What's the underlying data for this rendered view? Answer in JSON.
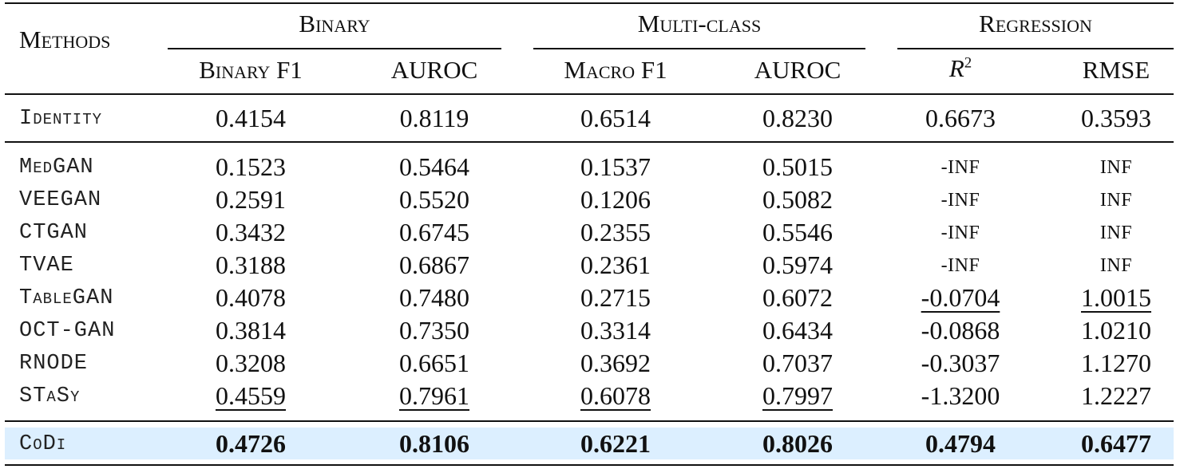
{
  "table": {
    "methods_header": "Methods",
    "groups": [
      {
        "label": "Binary"
      },
      {
        "label": "Multi-class"
      },
      {
        "label": "Regression"
      }
    ],
    "columns": [
      "Binary F1",
      "AUROC",
      "Macro F1",
      "AUROC",
      "R2",
      "RMSE"
    ],
    "rows": [
      {
        "method": "Identity",
        "section": "baseline",
        "values": [
          "0.4154",
          "0.8119",
          "0.6514",
          "0.8230",
          "0.6673",
          "0.3593"
        ],
        "underline": [
          false,
          false,
          false,
          false,
          false,
          false
        ],
        "bold": false
      },
      {
        "method": "MedGAN",
        "section": "baselines",
        "values": [
          "0.1523",
          "0.5464",
          "0.1537",
          "0.5015",
          "-INF",
          "INF"
        ],
        "underline": [
          false,
          false,
          false,
          false,
          false,
          false
        ],
        "bold": false
      },
      {
        "method": "VEEGAN",
        "section": "baselines",
        "values": [
          "0.2591",
          "0.5520",
          "0.1206",
          "0.5082",
          "-INF",
          "INF"
        ],
        "underline": [
          false,
          false,
          false,
          false,
          false,
          false
        ],
        "bold": false
      },
      {
        "method": "CTGAN",
        "section": "baselines",
        "values": [
          "0.3432",
          "0.6745",
          "0.2355",
          "0.5546",
          "-INF",
          "INF"
        ],
        "underline": [
          false,
          false,
          false,
          false,
          false,
          false
        ],
        "bold": false
      },
      {
        "method": "TVAE",
        "section": "baselines",
        "values": [
          "0.3188",
          "0.6867",
          "0.2361",
          "0.5974",
          "-INF",
          "INF"
        ],
        "underline": [
          false,
          false,
          false,
          false,
          false,
          false
        ],
        "bold": false
      },
      {
        "method": "TableGAN",
        "section": "baselines",
        "values": [
          "0.4078",
          "0.7480",
          "0.2715",
          "0.6072",
          "-0.0704",
          "1.0015"
        ],
        "underline": [
          false,
          false,
          false,
          false,
          true,
          true
        ],
        "bold": false
      },
      {
        "method": "OCT-GAN",
        "section": "baselines",
        "values": [
          "0.3814",
          "0.7350",
          "0.3314",
          "0.6434",
          "-0.0868",
          "1.0210"
        ],
        "underline": [
          false,
          false,
          false,
          false,
          false,
          false
        ],
        "bold": false
      },
      {
        "method": "RNODE",
        "section": "baselines",
        "values": [
          "0.3208",
          "0.6651",
          "0.3692",
          "0.7037",
          "-0.3037",
          "1.1270"
        ],
        "underline": [
          false,
          false,
          false,
          false,
          false,
          false
        ],
        "bold": false
      },
      {
        "method": "STaSy",
        "section": "baselines",
        "values": [
          "0.4559",
          "0.7961",
          "0.6078",
          "0.7997",
          "-1.3200",
          "1.2227"
        ],
        "underline": [
          true,
          true,
          true,
          true,
          false,
          false
        ],
        "bold": false
      },
      {
        "method": "CoDi",
        "section": "ours",
        "values": [
          "0.4726",
          "0.8106",
          "0.6221",
          "0.8026",
          "0.4794",
          "0.6477"
        ],
        "underline": [
          false,
          false,
          false,
          false,
          false,
          false
        ],
        "bold": true
      }
    ],
    "highlight_color": "#dcefff"
  }
}
